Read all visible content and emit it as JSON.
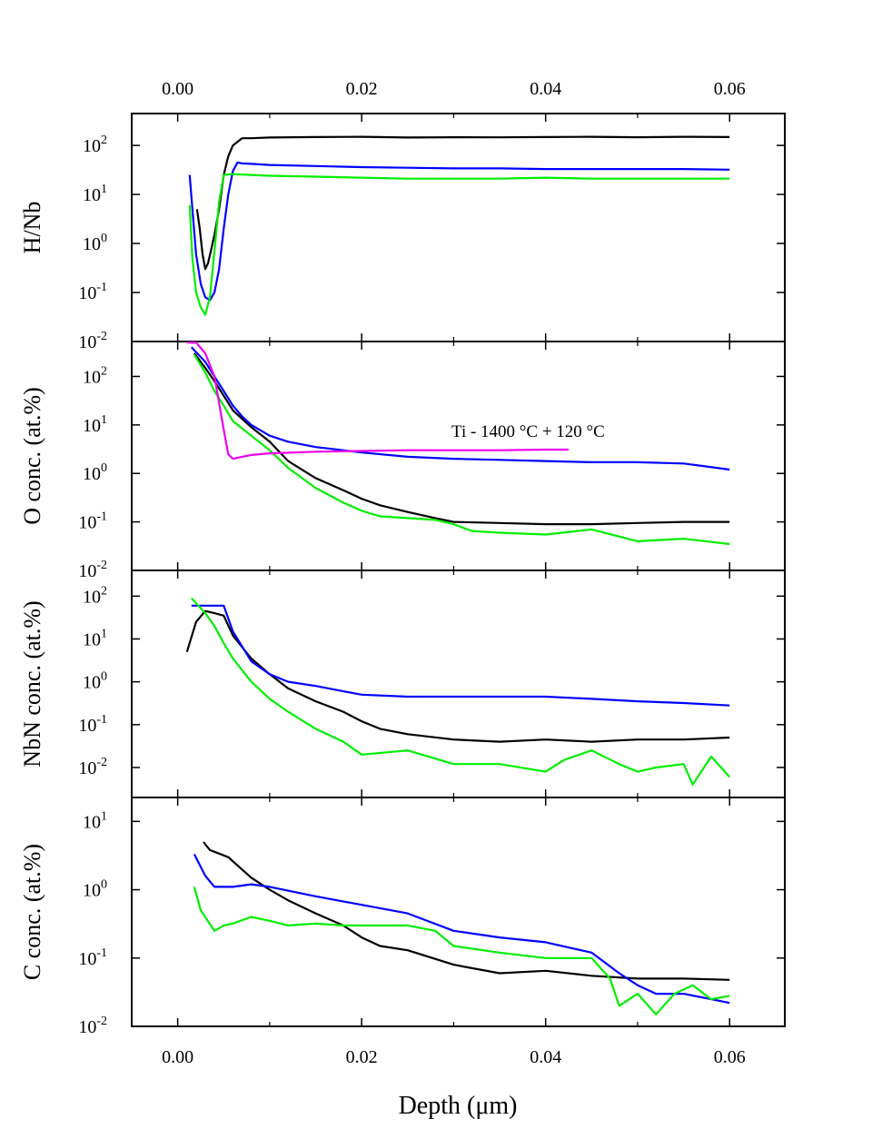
{
  "figure": {
    "xlabel": "Depth (μm)",
    "x_ticks": [
      0.0,
      0.02,
      0.04,
      0.06
    ],
    "x_tick_labels": [
      "0.00",
      "0.02",
      "0.04",
      "0.06"
    ],
    "xlim": [
      -0.005,
      0.066
    ],
    "colors": {
      "black": "#000000",
      "blue": "#0000ff",
      "green": "#00ee00",
      "magenta": "#ee00ee"
    }
  },
  "chart_data": [
    {
      "type": "line",
      "ylabel": "H/Nb",
      "yscale": "log",
      "ylim_exp": [
        -2,
        2.65
      ],
      "y_ticks_exp": [
        -2,
        -1,
        0,
        1,
        2
      ],
      "series": [
        {
          "name": "black",
          "x": [
            0.0021,
            0.0024,
            0.0027,
            0.003,
            0.0033,
            0.0036,
            0.004,
            0.0045,
            0.005,
            0.0055,
            0.006,
            0.007,
            0.008,
            0.01,
            0.015,
            0.02,
            0.025,
            0.03,
            0.035,
            0.04,
            0.045,
            0.05,
            0.055,
            0.06
          ],
          "y": [
            5,
            2,
            0.6,
            0.3,
            0.4,
            0.7,
            1.5,
            5,
            25,
            60,
            100,
            140,
            140,
            145,
            148,
            150,
            145,
            147,
            146,
            148,
            150,
            147,
            150,
            148
          ]
        },
        {
          "name": "blue",
          "x": [
            0.0013,
            0.0017,
            0.002,
            0.0025,
            0.003,
            0.0035,
            0.004,
            0.0045,
            0.005,
            0.0055,
            0.006,
            0.0065,
            0.007,
            0.008,
            0.01,
            0.015,
            0.02,
            0.025,
            0.03,
            0.035,
            0.04,
            0.045,
            0.05,
            0.055,
            0.06
          ],
          "y": [
            25,
            3,
            0.6,
            0.15,
            0.08,
            0.07,
            0.1,
            0.3,
            2,
            10,
            30,
            45,
            43,
            42,
            40,
            38,
            36,
            35,
            34,
            34,
            33,
            33,
            33,
            33,
            32
          ]
        },
        {
          "name": "green",
          "x": [
            0.0013,
            0.0016,
            0.002,
            0.0025,
            0.003,
            0.0035,
            0.004,
            0.0045,
            0.005,
            0.006,
            0.008,
            0.01,
            0.015,
            0.02,
            0.025,
            0.03,
            0.035,
            0.04,
            0.045,
            0.05,
            0.055,
            0.06
          ],
          "y": [
            6,
            0.5,
            0.1,
            0.05,
            0.035,
            0.08,
            0.7,
            7,
            25,
            26,
            25,
            24,
            23,
            22,
            21,
            21,
            21,
            22,
            21,
            21,
            21,
            21
          ]
        }
      ]
    },
    {
      "type": "line",
      "ylabel": "O conc. (at.%)",
      "yscale": "log",
      "ylim_exp": [
        -2,
        2.72
      ],
      "y_ticks_exp": [
        -2,
        -1,
        0,
        1,
        2
      ],
      "annotation": "Ti - 1400 °C + 120 °C",
      "series": [
        {
          "name": "black",
          "x": [
            0.0018,
            0.003,
            0.004,
            0.005,
            0.006,
            0.008,
            0.01,
            0.012,
            0.015,
            0.018,
            0.02,
            0.022,
            0.025,
            0.028,
            0.03,
            0.035,
            0.04,
            0.045,
            0.05,
            0.055,
            0.06
          ],
          "y": [
            300,
            150,
            80,
            40,
            20,
            9,
            4.5,
            1.8,
            0.8,
            0.45,
            0.3,
            0.22,
            0.16,
            0.12,
            0.1,
            0.095,
            0.09,
            0.09,
            0.095,
            0.1,
            0.1
          ]
        },
        {
          "name": "blue",
          "x": [
            0.0015,
            0.003,
            0.004,
            0.005,
            0.006,
            0.007,
            0.008,
            0.01,
            0.012,
            0.015,
            0.018,
            0.02,
            0.025,
            0.03,
            0.035,
            0.04,
            0.045,
            0.05,
            0.055,
            0.06
          ],
          "y": [
            400,
            200,
            100,
            50,
            25,
            15,
            10,
            6,
            4.5,
            3.5,
            3,
            2.7,
            2.2,
            2,
            1.9,
            1.8,
            1.7,
            1.7,
            1.6,
            1.2
          ]
        },
        {
          "name": "green",
          "x": [
            0.0018,
            0.003,
            0.004,
            0.005,
            0.006,
            0.008,
            0.01,
            0.012,
            0.015,
            0.018,
            0.02,
            0.022,
            0.025,
            0.028,
            0.03,
            0.032,
            0.035,
            0.04,
            0.045,
            0.048,
            0.05,
            0.055,
            0.06
          ],
          "y": [
            280,
            120,
            50,
            25,
            12,
            6,
            3,
            1.3,
            0.5,
            0.25,
            0.17,
            0.13,
            0.12,
            0.11,
            0.09,
            0.065,
            0.06,
            0.055,
            0.07,
            0.05,
            0.04,
            0.045,
            0.035
          ]
        },
        {
          "name": "magenta",
          "x": [
            0.001,
            0.002,
            0.003,
            0.004,
            0.005,
            0.0055,
            0.006,
            0.007,
            0.008,
            0.01,
            0.015,
            0.02,
            0.025,
            0.03,
            0.035,
            0.04,
            0.0425
          ],
          "y": [
            500,
            500,
            300,
            100,
            8,
            2.5,
            2,
            2.2,
            2.4,
            2.6,
            2.8,
            2.9,
            3,
            3,
            3,
            3.1,
            3.1
          ]
        }
      ]
    },
    {
      "type": "line",
      "ylabel": "NbN conc. (at.%)",
      "yscale": "log",
      "ylim_exp": [
        -2.7,
        2.6
      ],
      "y_ticks_exp": [
        -2,
        -1,
        0,
        1,
        2
      ],
      "series": [
        {
          "name": "black",
          "x": [
            0.001,
            0.002,
            0.003,
            0.004,
            0.005,
            0.006,
            0.008,
            0.01,
            0.012,
            0.015,
            0.018,
            0.02,
            0.022,
            0.025,
            0.03,
            0.035,
            0.04,
            0.045,
            0.05,
            0.055,
            0.06
          ],
          "y": [
            5,
            25,
            45,
            40,
            35,
            12,
            3.5,
            1.5,
            0.7,
            0.35,
            0.2,
            0.12,
            0.08,
            0.06,
            0.045,
            0.04,
            0.045,
            0.04,
            0.045,
            0.045,
            0.05
          ]
        },
        {
          "name": "blue",
          "x": [
            0.0015,
            0.003,
            0.005,
            0.006,
            0.008,
            0.01,
            0.012,
            0.015,
            0.018,
            0.02,
            0.025,
            0.03,
            0.035,
            0.04,
            0.045,
            0.05,
            0.055,
            0.06
          ],
          "y": [
            60,
            60,
            60,
            15,
            3,
            1.5,
            1,
            0.8,
            0.6,
            0.5,
            0.45,
            0.45,
            0.45,
            0.45,
            0.4,
            0.35,
            0.32,
            0.28
          ]
        },
        {
          "name": "green",
          "x": [
            0.0015,
            0.003,
            0.004,
            0.005,
            0.006,
            0.008,
            0.01,
            0.012,
            0.015,
            0.018,
            0.02,
            0.025,
            0.03,
            0.035,
            0.04,
            0.042,
            0.045,
            0.048,
            0.05,
            0.052,
            0.055,
            0.056,
            0.058,
            0.06
          ],
          "y": [
            90,
            40,
            20,
            8,
            3.5,
            1,
            0.4,
            0.2,
            0.08,
            0.04,
            0.02,
            0.025,
            0.012,
            0.012,
            0.008,
            0.015,
            0.025,
            0.012,
            0.008,
            0.01,
            0.012,
            0.004,
            0.018,
            0.006
          ]
        }
      ]
    },
    {
      "type": "line",
      "ylabel": "C conc. (at.%)",
      "yscale": "log",
      "ylim_exp": [
        -2,
        1.35
      ],
      "y_ticks_exp": [
        -2,
        -1,
        0,
        1
      ],
      "series": [
        {
          "name": "black",
          "x": [
            0.0028,
            0.0035,
            0.0055,
            0.008,
            0.01,
            0.012,
            0.015,
            0.018,
            0.02,
            0.022,
            0.025,
            0.03,
            0.035,
            0.04,
            0.045,
            0.05,
            0.055,
            0.06
          ],
          "y": [
            5,
            3.8,
            3,
            1.5,
            1,
            0.7,
            0.45,
            0.3,
            0.2,
            0.15,
            0.13,
            0.08,
            0.06,
            0.065,
            0.055,
            0.05,
            0.05,
            0.048
          ]
        },
        {
          "name": "blue",
          "x": [
            0.0018,
            0.003,
            0.004,
            0.006,
            0.008,
            0.01,
            0.015,
            0.02,
            0.025,
            0.03,
            0.035,
            0.04,
            0.045,
            0.048,
            0.05,
            0.052,
            0.055,
            0.058,
            0.06
          ],
          "y": [
            3.3,
            1.6,
            1.1,
            1.1,
            1.2,
            1.1,
            0.8,
            0.6,
            0.45,
            0.25,
            0.2,
            0.17,
            0.12,
            0.06,
            0.04,
            0.03,
            0.03,
            0.025,
            0.022
          ]
        },
        {
          "name": "green",
          "x": [
            0.0018,
            0.0025,
            0.004,
            0.005,
            0.006,
            0.008,
            0.01,
            0.012,
            0.015,
            0.018,
            0.02,
            0.025,
            0.028,
            0.03,
            0.035,
            0.04,
            0.045,
            0.047,
            0.048,
            0.05,
            0.052,
            0.054,
            0.056,
            0.058,
            0.06
          ],
          "y": [
            1.1,
            0.5,
            0.25,
            0.3,
            0.32,
            0.4,
            0.35,
            0.3,
            0.32,
            0.3,
            0.3,
            0.3,
            0.25,
            0.15,
            0.12,
            0.1,
            0.1,
            0.05,
            0.02,
            0.03,
            0.015,
            0.03,
            0.04,
            0.025,
            0.028
          ]
        }
      ]
    }
  ]
}
